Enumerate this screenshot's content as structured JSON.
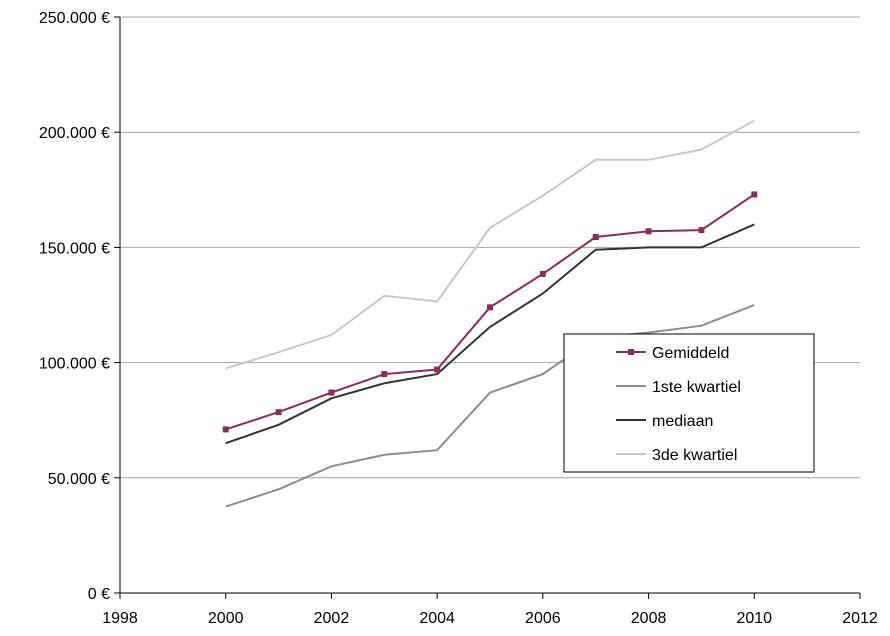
{
  "chart_data": {
    "type": "line",
    "title": "",
    "xlabel": "",
    "ylabel": "",
    "xlim": [
      1998,
      2012
    ],
    "ylim": [
      0,
      250000
    ],
    "x_ticks": [
      1998,
      2000,
      2002,
      2004,
      2006,
      2008,
      2010,
      2012
    ],
    "x_tick_labels": [
      "1998",
      "2000",
      "2002",
      "2004",
      "2006",
      "2008",
      "2010",
      "2012"
    ],
    "y_ticks": [
      0,
      50000,
      100000,
      150000,
      200000,
      250000
    ],
    "y_tick_labels": [
      "0 €",
      "50.000 €",
      "100.000 €",
      "150.000 €",
      "200.000 €",
      "250.000 €"
    ],
    "grid": "horizontal",
    "legend_position": "right",
    "x": [
      2000,
      2001,
      2002,
      2003,
      2004,
      2005,
      2006,
      2007,
      2008,
      2009,
      2010
    ],
    "series": [
      {
        "name": "Gemiddeld",
        "color": "#8b2c5a",
        "marker": "square",
        "values": [
          71000,
          78500,
          87000,
          95000,
          97000,
          124000,
          138500,
          154500,
          157000,
          157500,
          173000
        ]
      },
      {
        "name": "1ste kwartiel",
        "color": "#8c8c8c",
        "marker": "none",
        "values": [
          37500,
          45000,
          55000,
          60000,
          62000,
          87000,
          95000,
          111000,
          113000,
          116000,
          125000
        ]
      },
      {
        "name": "mediaan",
        "color": "#333333",
        "marker": "none",
        "values": [
          65000,
          73000,
          84500,
          91000,
          95000,
          115500,
          130000,
          149000,
          150000,
          150000,
          160000
        ]
      },
      {
        "name": "3de kwartiel",
        "color": "#c8c8c8",
        "marker": "none",
        "values": [
          97500,
          104500,
          112000,
          129000,
          126500,
          158500,
          172500,
          188000,
          188000,
          192500,
          205000
        ]
      }
    ]
  }
}
